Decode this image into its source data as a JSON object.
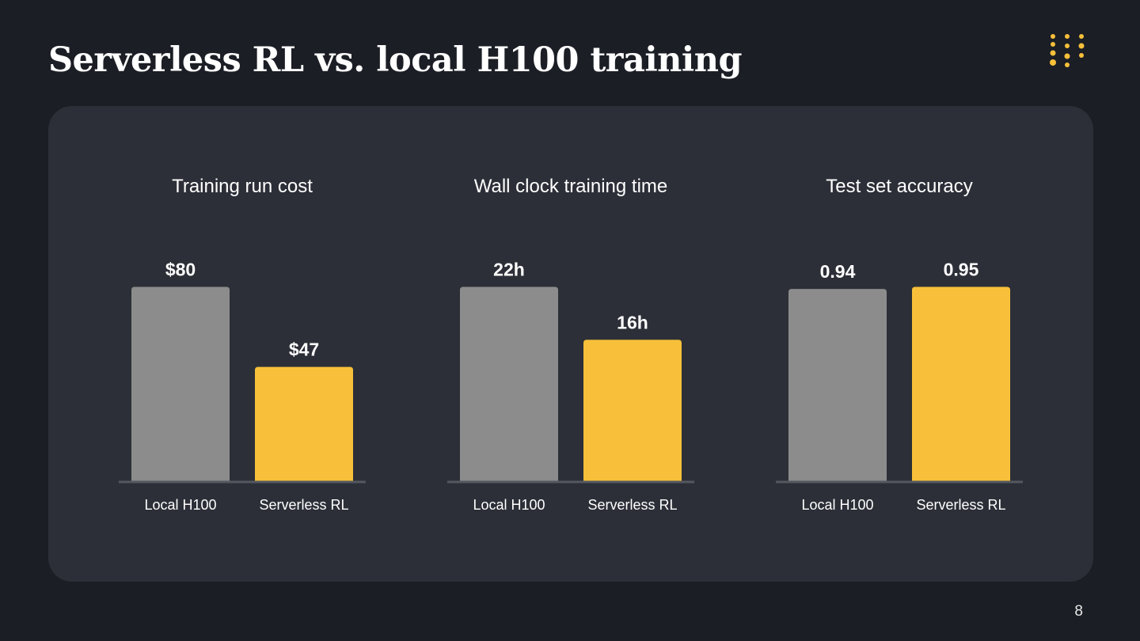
{
  "slide": {
    "title": "Serverless RL vs. local H100 training",
    "page_number": "8"
  },
  "logo": {
    "icon": "dot-grid-logo-icon",
    "color": "#f8c03a"
  },
  "colors": {
    "background": "#1b1e25",
    "panel": "#2c2f37",
    "local_bar": "#8c8c8c",
    "serverless_bar": "#f8c03a",
    "baseline": "#55585f",
    "text": "#ffffff"
  },
  "chart_data": [
    {
      "type": "bar",
      "title": "Training run cost",
      "categories": [
        "Local H100",
        "Serverless RL"
      ],
      "values": [
        80,
        47
      ],
      "labels": [
        "$80",
        "$47"
      ],
      "ylim": [
        0,
        80
      ]
    },
    {
      "type": "bar",
      "title": "Wall clock training time",
      "categories": [
        "Local H100",
        "Serverless RL"
      ],
      "values": [
        22,
        16
      ],
      "labels": [
        "22h",
        "16h"
      ],
      "ylim": [
        0,
        22
      ]
    },
    {
      "type": "bar",
      "title": "Test set accuracy",
      "categories": [
        "Local H100",
        "Serverless RL"
      ],
      "values": [
        0.94,
        0.95
      ],
      "labels": [
        "0.94",
        "0.95"
      ],
      "ylim": [
        0,
        0.95
      ]
    }
  ]
}
